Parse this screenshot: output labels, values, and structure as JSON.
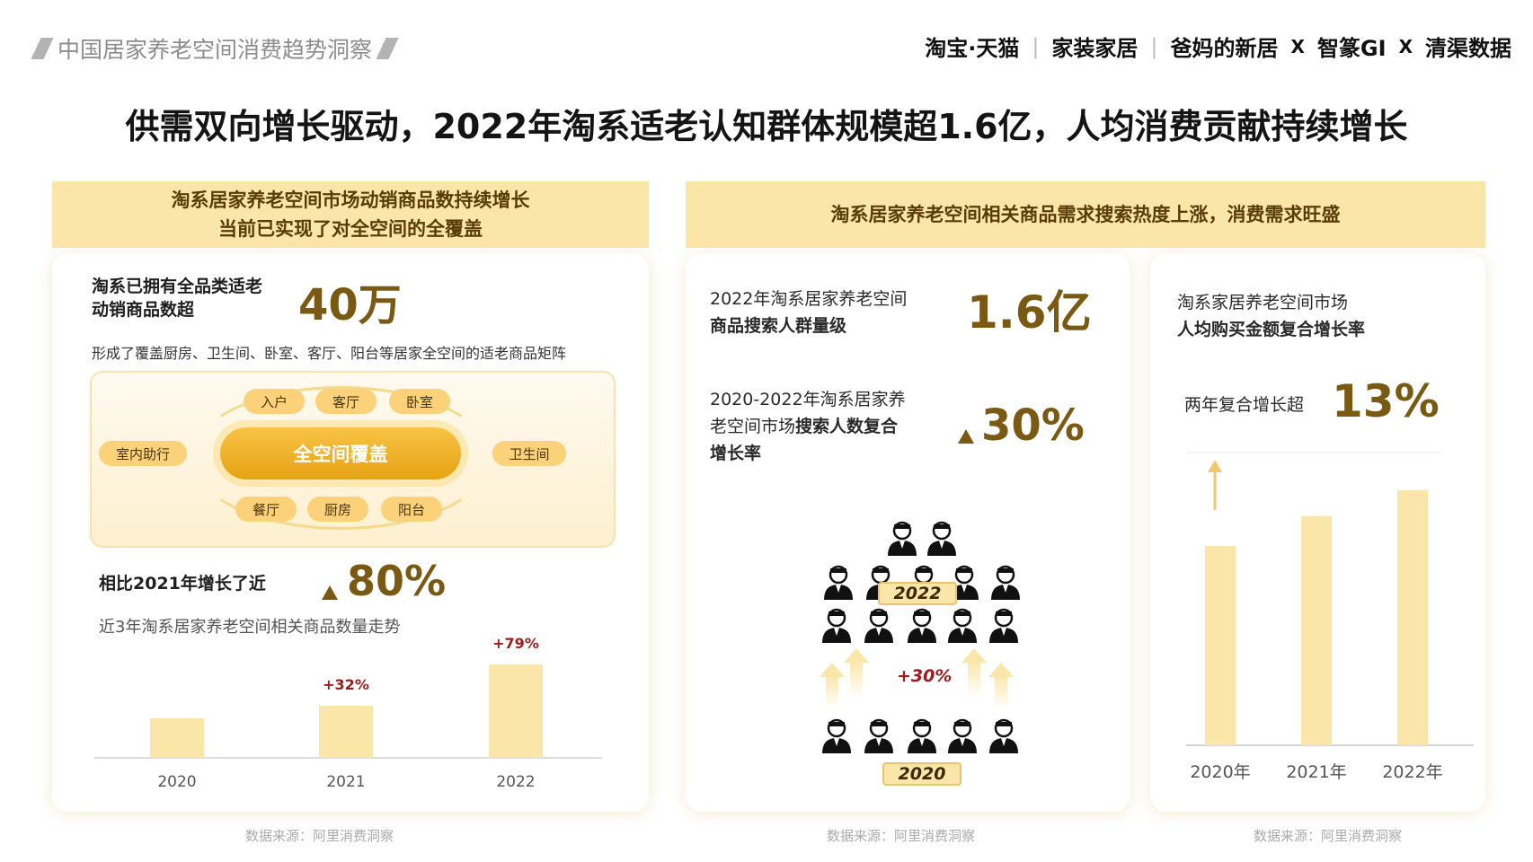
{
  "header": {
    "report_title": "中国居家养老空间消费趋势洞察",
    "brands": [
      "淘宝·天猫",
      "家装家居",
      "爸妈的新居"
    ],
    "partner_sep": "X",
    "partner1": "智篆GI",
    "partner2": "清渠数据"
  },
  "headline": "供需双向增长驱动，2022年淘系适老认知群体规模超1.6亿，人均消费贡献持续增长",
  "left": {
    "banner_line1": "淘系居家养老空间市场动销商品数持续增长",
    "banner_line2": "当前已实现了对全空间的全覆盖",
    "stat_label_line1": "淘系已拥有全品类适老",
    "stat_label_line2": "动销商品数超",
    "stat_value": "40万",
    "desc": "形成了覆盖厨房、卫生间、卧室、客厅、阳台等居家全空间的适老商品矩阵",
    "coverage_center": "全空间覆盖",
    "rooms_top": [
      "入户",
      "客厅",
      "卧室"
    ],
    "rooms_bottom": [
      "餐厅",
      "厨房",
      "阳台"
    ],
    "room_left": "室内助行",
    "room_right": "卫生间",
    "growth_label": "相比2021年增长了近",
    "growth_value": "80%",
    "chart_title": "近3年淘系居家养老空间相关商品数量走势",
    "source": "数据来源：阿里消费洞察"
  },
  "middle": {
    "banner": "淘系居家养老空间相关商品需求搜索热度上涨，消费需求旺盛",
    "stat1_line1": "2022年淘系居家养老空间",
    "stat1_line2": "商品搜索人群量级",
    "stat1_value": "1.6亿",
    "stat2_line1": "2020-2022年淘系居家养",
    "stat2_line2a": "老空间市场",
    "stat2_line2b": "搜索人数复合",
    "stat2_line3": "增长率",
    "stat2_value": "30%",
    "tag_2022": "2022",
    "tag_2020": "2020",
    "growth_tag": "+30%",
    "source": "数据来源：阿里消费洞察"
  },
  "right": {
    "label_line1": "淘系家居养老空间市场",
    "label_line2": "人均购买金额复合增长率",
    "cagr_label": "两年复合增长超",
    "cagr_value": "13%",
    "source": "数据来源：阿里消费洞察"
  },
  "colors": {
    "accent_gold": "#7a5a12",
    "bar_fill": "#fbe6a9",
    "banner_bg": "#fbe6a9",
    "growth_red": "#a01c1c",
    "pill_gold": "#f2b52a"
  },
  "chart_data": [
    {
      "type": "bar",
      "categories": [
        "2020",
        "2021",
        "2022"
      ],
      "values": [
        1.0,
        1.32,
        2.36
      ],
      "annotations": [
        "",
        "+32%",
        "+79%"
      ],
      "title": "近3年淘系居家养老空间相关商品数量走势",
      "xlabel": "",
      "ylabel": "",
      "ylim": [
        0,
        2.5
      ],
      "grid": false
    },
    {
      "type": "bar",
      "categories": [
        "2020年",
        "2021年",
        "2022年"
      ],
      "values": [
        1.0,
        1.15,
        1.28
      ],
      "title": "",
      "xlabel": "",
      "ylabel": "",
      "ylim": [
        0,
        1.6
      ],
      "grid": false
    }
  ]
}
